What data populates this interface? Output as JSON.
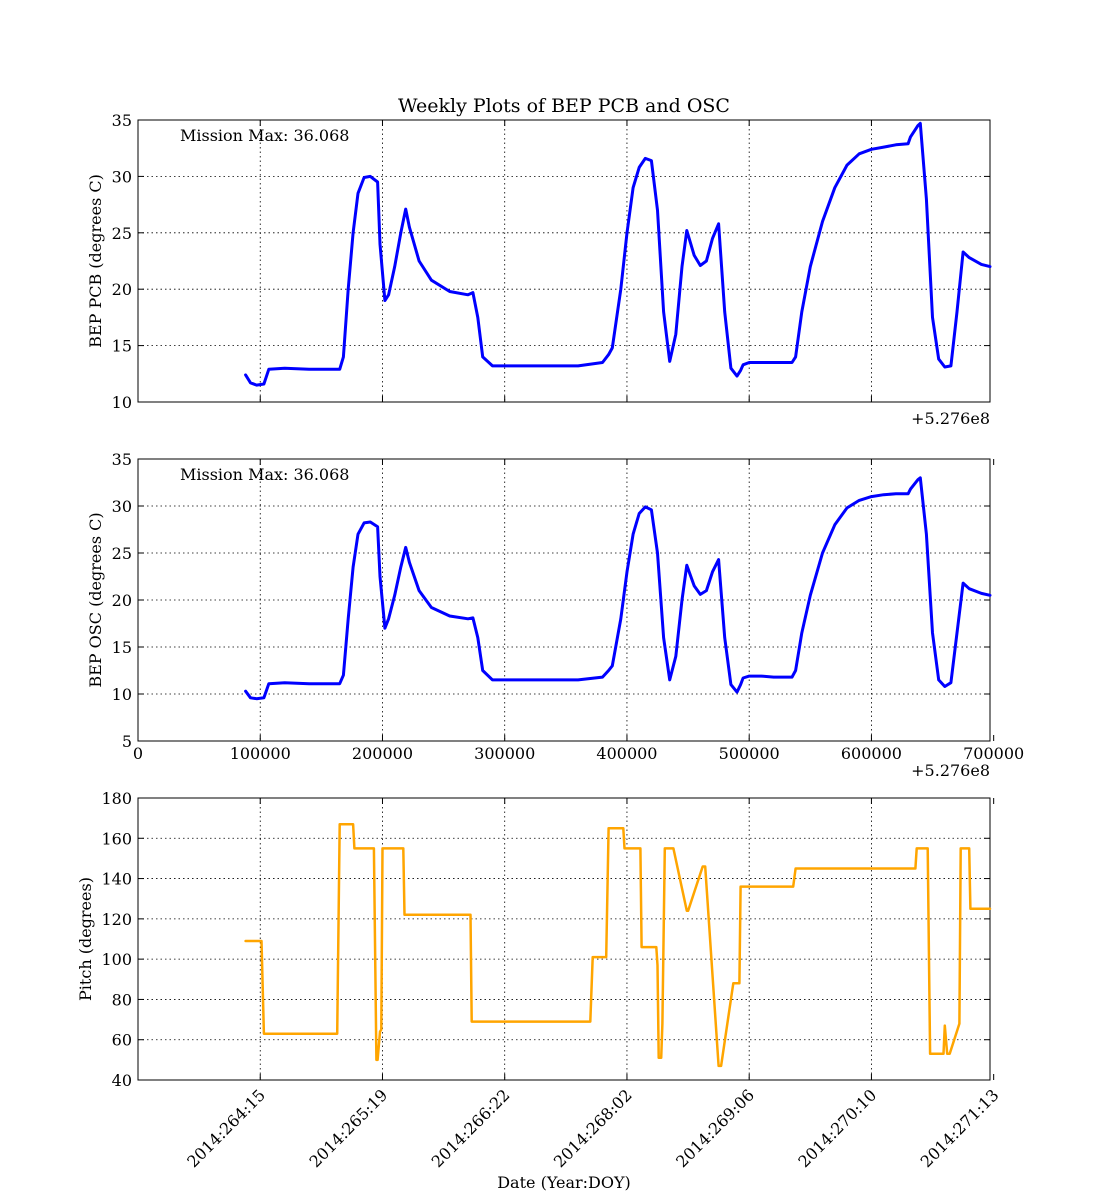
{
  "title": "Weekly Plots of BEP PCB and OSC",
  "colors": {
    "temperature_line": "#0000ff",
    "pitch_line": "#ffa500",
    "axes": "#000000",
    "grid": "#000000"
  },
  "chart_data": [
    {
      "type": "line",
      "title": "Weekly Plots of BEP PCB and OSC",
      "ylabel": "BEP PCB (degrees C)",
      "xlabel": "",
      "annotation": "Mission Max: 36.068",
      "offset_label": "+5.276e8",
      "xlim": [
        0,
        697000
      ],
      "ylim": [
        10,
        35
      ],
      "yticks": [
        10,
        15,
        20,
        25,
        30,
        35
      ],
      "xticks": [
        100000,
        200000,
        300000,
        400000,
        500000,
        600000
      ],
      "show_xticklabels": false,
      "grid": true,
      "series": [
        {
          "x": [
            88000,
            92000,
            97000,
            103000,
            107000,
            120000,
            140000,
            165000,
            168000,
            172000,
            176000,
            180000,
            185000,
            190000,
            196000,
            198000,
            202000,
            205000,
            210000,
            215000,
            219000,
            222000,
            230000,
            240000,
            255000,
            270000,
            274000,
            278000,
            282000,
            290000,
            300000,
            320000,
            340000,
            360000,
            380000,
            385000,
            388000,
            395000,
            400000,
            405000,
            410000,
            415000,
            420000,
            425000,
            430000,
            435000,
            440000,
            445000,
            449000,
            455000,
            460000,
            465000,
            470000,
            475000,
            480000,
            485000,
            490000,
            493000,
            495000,
            500000,
            510000,
            520000,
            535000,
            538000,
            543000,
            550000,
            560000,
            570000,
            580000,
            590000,
            600000,
            610000,
            620000,
            630000,
            632000,
            638000,
            640000,
            645000,
            650000,
            655000,
            660000,
            665000,
            670000,
            675000,
            680000,
            690000,
            697000
          ],
          "y": [
            12.4,
            11.7,
            11.5,
            11.6,
            12.9,
            13.0,
            12.9,
            12.9,
            14.0,
            20.0,
            25.0,
            28.5,
            29.9,
            30.0,
            29.5,
            24.0,
            19.0,
            19.5,
            22.0,
            25.0,
            27.1,
            25.5,
            22.5,
            20.8,
            19.8,
            19.5,
            19.7,
            17.5,
            14.0,
            13.2,
            13.2,
            13.2,
            13.2,
            13.2,
            13.5,
            14.2,
            14.8,
            20.0,
            25.0,
            29.0,
            30.8,
            31.6,
            31.4,
            27.0,
            18.0,
            13.6,
            16.0,
            22.0,
            25.2,
            23.0,
            22.1,
            22.5,
            24.5,
            25.8,
            18.0,
            13.0,
            12.3,
            12.8,
            13.3,
            13.5,
            13.5,
            13.5,
            13.5,
            14.0,
            18.0,
            22.0,
            26.0,
            29.0,
            31.0,
            32.0,
            32.4,
            32.6,
            32.8,
            32.9,
            33.5,
            34.5,
            34.7,
            28.0,
            17.5,
            13.8,
            13.1,
            13.2,
            18.0,
            23.3,
            22.8,
            22.2,
            22.0
          ]
        }
      ]
    },
    {
      "type": "line",
      "ylabel": "BEP OSC (degrees C)",
      "xlabel": "",
      "annotation": "Mission Max: 36.068",
      "offset_label": "+5.276e8",
      "xlim": [
        0,
        697000
      ],
      "ylim": [
        5,
        35
      ],
      "yticks": [
        5,
        10,
        15,
        20,
        25,
        30,
        35
      ],
      "xticks": [
        0,
        100000,
        200000,
        300000,
        400000,
        500000,
        600000,
        700000
      ],
      "xticklabels": [
        "0",
        "100000",
        "200000",
        "300000",
        "400000",
        "500000",
        "600000",
        "700000"
      ],
      "show_xticklabels": true,
      "grid": true,
      "series": [
        {
          "x": [
            88000,
            92000,
            97000,
            103000,
            107000,
            120000,
            140000,
            165000,
            168000,
            172000,
            176000,
            180000,
            185000,
            190000,
            196000,
            198000,
            202000,
            205000,
            210000,
            215000,
            219000,
            222000,
            230000,
            240000,
            255000,
            270000,
            274000,
            278000,
            282000,
            290000,
            300000,
            320000,
            340000,
            360000,
            380000,
            385000,
            388000,
            395000,
            400000,
            405000,
            410000,
            415000,
            420000,
            425000,
            430000,
            435000,
            440000,
            445000,
            449000,
            455000,
            460000,
            465000,
            470000,
            475000,
            480000,
            485000,
            490000,
            493000,
            495000,
            500000,
            510000,
            520000,
            535000,
            538000,
            543000,
            550000,
            560000,
            570000,
            580000,
            590000,
            600000,
            610000,
            620000,
            630000,
            632000,
            638000,
            640000,
            645000,
            650000,
            655000,
            660000,
            665000,
            670000,
            675000,
            680000,
            690000,
            697000
          ],
          "y": [
            10.3,
            9.6,
            9.5,
            9.6,
            11.1,
            11.2,
            11.1,
            11.1,
            12.0,
            18.0,
            23.5,
            27.0,
            28.2,
            28.3,
            27.8,
            22.5,
            17.0,
            18.0,
            20.5,
            23.5,
            25.6,
            24.0,
            21.0,
            19.2,
            18.3,
            18.0,
            18.1,
            16.0,
            12.5,
            11.5,
            11.5,
            11.5,
            11.5,
            11.5,
            11.8,
            12.5,
            13.0,
            18.0,
            23.0,
            27.0,
            29.2,
            29.9,
            29.6,
            25.0,
            16.0,
            11.5,
            14.0,
            20.0,
            23.7,
            21.5,
            20.6,
            21.0,
            23.0,
            24.3,
            16.0,
            11.0,
            10.2,
            11.0,
            11.7,
            11.9,
            11.9,
            11.8,
            11.8,
            12.5,
            16.5,
            20.5,
            25.0,
            28.0,
            29.8,
            30.6,
            31.0,
            31.2,
            31.3,
            31.3,
            31.8,
            32.8,
            33.0,
            27.0,
            16.5,
            11.5,
            10.8,
            11.2,
            16.5,
            21.8,
            21.2,
            20.7,
            20.5
          ]
        }
      ]
    },
    {
      "type": "line",
      "ylabel": "Pitch (degrees)",
      "xlabel": "Date (Year:DOY)",
      "xlim": [
        0,
        697000
      ],
      "ylim": [
        40,
        180
      ],
      "yticks": [
        40,
        60,
        80,
        100,
        120,
        140,
        160,
        180
      ],
      "xticks": [
        100000,
        200000,
        300000,
        400000,
        500000,
        600000,
        700000
      ],
      "xticklabels": [
        "2014:264:15",
        "2014:265:19",
        "2014:266:22",
        "2014:268:02",
        "2014:269:06",
        "2014:270:10",
        "2014:271:13"
      ],
      "show_xticklabels": true,
      "grid": true,
      "series": [
        {
          "x": [
            88000,
            101000,
            103000,
            163000,
            165000,
            167000,
            176000,
            177000,
            186000,
            193000,
            195000,
            196000,
            198000,
            199000,
            200000,
            201000,
            217000,
            218000,
            272000,
            273000,
            370000,
            372000,
            383000,
            385000,
            396000,
            397000,
            398000,
            411000,
            412000,
            424000,
            425000,
            426000,
            428000,
            429000,
            431000,
            437000,
            438000,
            449000,
            450000,
            462000,
            464000,
            475000,
            477000,
            487000,
            488000,
            492000,
            493000,
            536000,
            538000,
            558000,
            559000,
            636000,
            637000,
            646000,
            648000,
            659000,
            660000,
            662000,
            664000,
            672000,
            673000,
            680000,
            681000,
            688000,
            697000
          ],
          "y": [
            109,
            109,
            63,
            63,
            167,
            167,
            167,
            155,
            155,
            155,
            50,
            50,
            64,
            65,
            155,
            155,
            155,
            122,
            122,
            69,
            69,
            101,
            101,
            165,
            165,
            165,
            155,
            155,
            106,
            106,
            97,
            51,
            51,
            68,
            155,
            155,
            155,
            124,
            124,
            146,
            146,
            47,
            47,
            88,
            88,
            88,
            136,
            136,
            145,
            145,
            145,
            145,
            155,
            155,
            53,
            53,
            67,
            53,
            53,
            68,
            155,
            155,
            125,
            125,
            125
          ]
        }
      ]
    }
  ]
}
